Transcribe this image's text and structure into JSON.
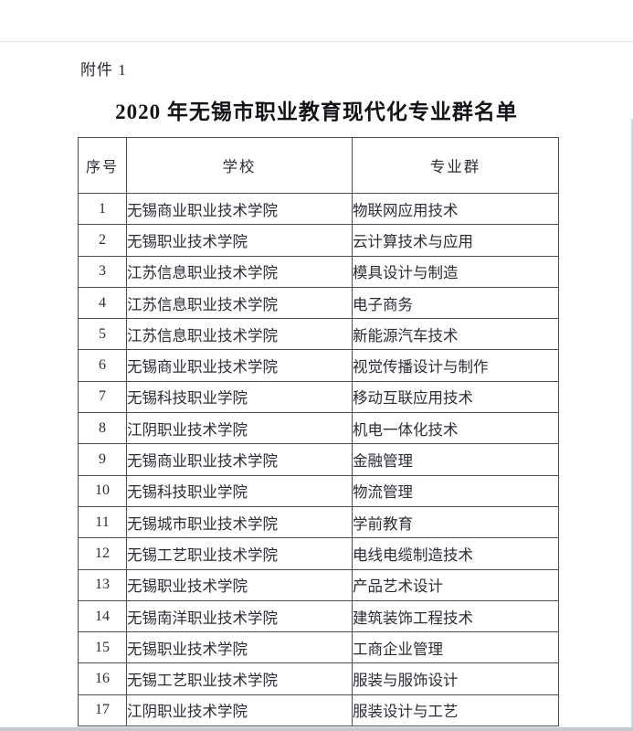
{
  "page": {
    "attachment_label": "附件 1",
    "title": "2020 年无锡市职业教育现代化专业群名单"
  },
  "table": {
    "headers": {
      "no": "序号",
      "school": "学校",
      "group": "专业群"
    },
    "rows": [
      {
        "no": "1",
        "school": "无锡商业职业技术学院",
        "group": "物联网应用技术"
      },
      {
        "no": "2",
        "school": "无锡职业技术学院",
        "group": "云计算技术与应用"
      },
      {
        "no": "3",
        "school": "江苏信息职业技术学院",
        "group": "模具设计与制造"
      },
      {
        "no": "4",
        "school": "江苏信息职业技术学院",
        "group": "电子商务"
      },
      {
        "no": "5",
        "school": "江苏信息职业技术学院",
        "group": "新能源汽车技术"
      },
      {
        "no": "6",
        "school": "无锡商业职业技术学院",
        "group": "视觉传播设计与制作"
      },
      {
        "no": "7",
        "school": "无锡科技职业学院",
        "group": "移动互联应用技术"
      },
      {
        "no": "8",
        "school": "江阴职业技术学院",
        "group": "机电一体化技术"
      },
      {
        "no": "9",
        "school": "无锡商业职业技术学院",
        "group": "金融管理"
      },
      {
        "no": "10",
        "school": "无锡科技职业学院",
        "group": "物流管理"
      },
      {
        "no": "11",
        "school": "无锡城市职业技术学院",
        "group": "学前教育"
      },
      {
        "no": "12",
        "school": "无锡工艺职业技术学院",
        "group": "电线电缆制造技术"
      },
      {
        "no": "13",
        "school": "无锡职业技术学院",
        "group": "产品艺术设计"
      },
      {
        "no": "14",
        "school": "无锡南洋职业技术学院",
        "group": "建筑装饰工程技术"
      },
      {
        "no": "15",
        "school": "无锡职业技术学院",
        "group": "工商企业管理"
      },
      {
        "no": "16",
        "school": "无锡工艺职业技术学院",
        "group": "服装与服饰设计"
      },
      {
        "no": "17",
        "school": "江阴职业技术学院",
        "group": "服装设计与工艺"
      }
    ]
  },
  "colors": {
    "ink": "#2c2c34",
    "title_ink": "#141418",
    "table_border": "#4c4c52",
    "page_edge": "#c6cacf",
    "background": "#ffffff"
  }
}
